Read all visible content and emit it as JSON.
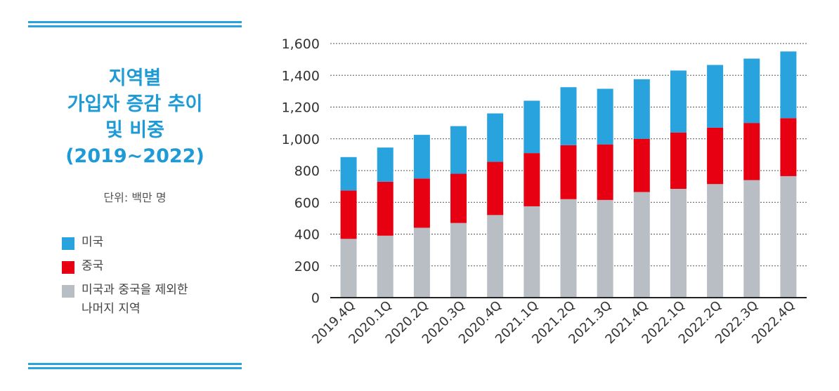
{
  "panel": {
    "title_lines": [
      "지역별",
      "가입자 증감 추이",
      "및 비중",
      "(2019~2022)"
    ],
    "unit": "단위: 백만 명"
  },
  "legend": [
    {
      "label": "미국",
      "color": "#29a3de"
    },
    {
      "label": "중국",
      "color": "#e60012"
    },
    {
      "label": "미국과 중국을 제외한",
      "label2": "나머지 지역",
      "color": "#b8bec3"
    }
  ],
  "chart_data": {
    "type": "bar",
    "stacked": true,
    "categories": [
      "2019.4Q",
      "2020.1Q",
      "2020.2Q",
      "2020.3Q",
      "2020.4Q",
      "2021.1Q",
      "2021.2Q",
      "2021.3Q",
      "2021.4Q",
      "2022.1Q",
      "2022.2Q",
      "2022.3Q",
      "2022.4Q"
    ],
    "series": [
      {
        "name": "미국과 중국을 제외한 나머지 지역",
        "color": "#b8bec3",
        "values": [
          370,
          390,
          440,
          470,
          520,
          575,
          620,
          615,
          665,
          685,
          715,
          740,
          765
        ]
      },
      {
        "name": "중국",
        "color": "#e60012",
        "values": [
          305,
          340,
          310,
          310,
          335,
          335,
          340,
          350,
          335,
          355,
          355,
          360,
          365
        ]
      },
      {
        "name": "미국",
        "color": "#29a3de",
        "values": [
          210,
          215,
          275,
          300,
          305,
          330,
          365,
          350,
          375,
          390,
          395,
          405,
          420
        ]
      }
    ],
    "ylim": [
      0,
      1600
    ],
    "yticks": [
      0,
      200,
      400,
      600,
      800,
      1000,
      1200,
      1400,
      1600
    ],
    "ytick_labels": [
      "0",
      "200",
      "400",
      "600",
      "800",
      "1,000",
      "1,200",
      "1,400",
      "1,600"
    ],
    "grid": "dashed-horizontal",
    "xlabel": "",
    "ylabel": ""
  }
}
